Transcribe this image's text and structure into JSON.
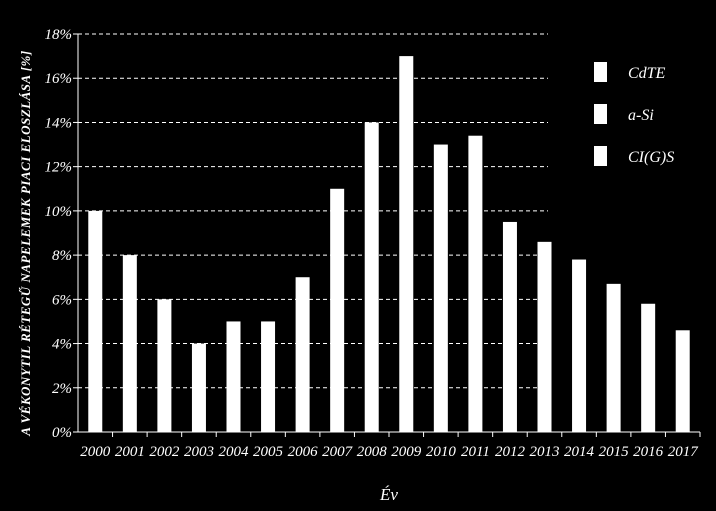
{
  "chart_data": {
    "type": "bar",
    "categories": [
      "2000",
      "2001",
      "2002",
      "2003",
      "2004",
      "2005",
      "2006",
      "2007",
      "2008",
      "2009",
      "2010",
      "2011",
      "2012",
      "2013",
      "2014",
      "2015",
      "2016",
      "2017"
    ],
    "values": [
      10,
      8,
      6,
      4,
      5,
      5,
      7,
      11,
      14,
      17,
      13,
      13.4,
      9.5,
      8.6,
      7.8,
      6.7,
      5.8,
      4.6
    ],
    "ylabel": "A VÉKONYTIL RÉTEGŰ NAPELEMEK PIACI ELOSZLÁSA [%]",
    "xlabel": "Év",
    "ylim": [
      0,
      18
    ],
    "yticks": [
      "0%",
      "2%",
      "4%",
      "6%",
      "8%",
      "10%",
      "12%",
      "14%",
      "16%",
      "18%"
    ],
    "grid": true,
    "bar_color": "#ffffff",
    "background": "#000000",
    "legend": {
      "placement": "top-right",
      "entries": [
        "CdTE",
        "a-Si",
        "CI(G)S"
      ]
    }
  }
}
